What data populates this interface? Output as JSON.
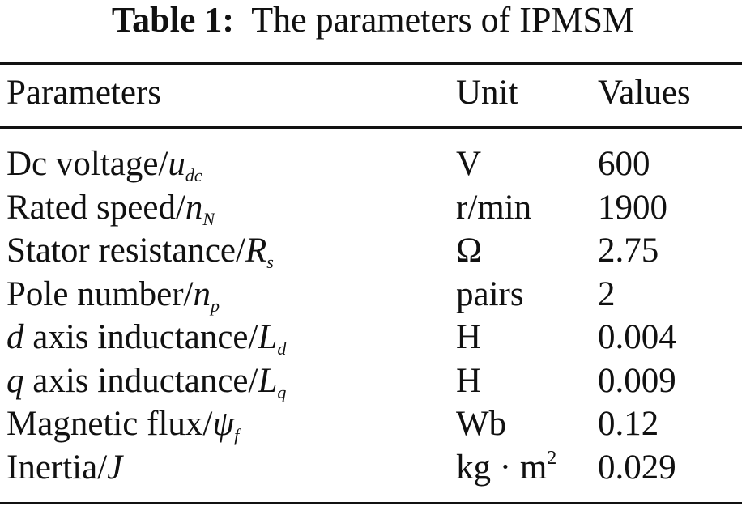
{
  "caption": {
    "label": "Table 1:",
    "title": "The parameters of IPMSM"
  },
  "table": {
    "headers": {
      "parameter": "Parameters",
      "unit": "Unit",
      "value": "Values"
    },
    "rows": [
      {
        "prefix": "",
        "name": "Dc voltage/",
        "symbol": "u",
        "subscript": "dc",
        "unit": "V",
        "unit_sup": "",
        "value": "600"
      },
      {
        "prefix": "",
        "name": "Rated speed/",
        "symbol": "n",
        "subscript": "N",
        "unit": "r/min",
        "unit_sup": "",
        "value": "1900"
      },
      {
        "prefix": "",
        "name": "Stator resistance/",
        "symbol": "R",
        "subscript": "s",
        "unit": "Ω",
        "unit_sup": "",
        "value": "2.75"
      },
      {
        "prefix": "",
        "name": "Pole number/",
        "symbol": "n",
        "subscript": "p",
        "unit": "pairs",
        "unit_sup": "",
        "value": "2"
      },
      {
        "prefix": "d",
        "name": " axis inductance/",
        "symbol": "L",
        "subscript": "d",
        "unit": "H",
        "unit_sup": "",
        "value": "0.004"
      },
      {
        "prefix": "q",
        "name": " axis inductance/",
        "symbol": "L",
        "subscript": "q",
        "unit": "H",
        "unit_sup": "",
        "value": "0.009"
      },
      {
        "prefix": "",
        "name": "Magnetic flux/",
        "symbol": "ψ",
        "subscript": "f",
        "unit": "Wb",
        "unit_sup": "",
        "value": "0.12"
      },
      {
        "prefix": "",
        "name": "Inertia/",
        "symbol": "J",
        "subscript": "",
        "unit": "kg · m",
        "unit_sup": "2",
        "value": "0.029"
      }
    ]
  }
}
